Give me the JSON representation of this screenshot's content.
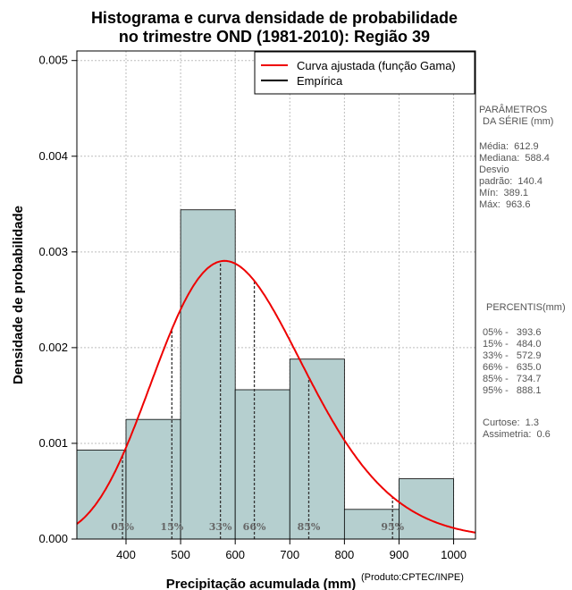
{
  "chart_data": {
    "type": "bar",
    "title_line1": "Histograma e curva densidade de probabilidade",
    "title_line2": "no trimestre OND (1981-2010): Região 39",
    "xlabel": "Precipitação acumulada (mm)",
    "ylabel": "Densidade de probabilidade",
    "xlim": [
      310,
      1040
    ],
    "ylim": [
      0,
      0.0051
    ],
    "x_ticks": [
      400,
      500,
      600,
      700,
      800,
      900,
      1000
    ],
    "x_tick_labels": [
      "400",
      "500",
      "600",
      "700",
      "800",
      "900",
      "1000"
    ],
    "y_ticks": [
      0,
      0.001,
      0.002,
      0.003,
      0.004,
      0.005
    ],
    "y_tick_labels": [
      "0.000",
      "0.001",
      "0.002",
      "0.003",
      "0.004",
      "0.005"
    ],
    "grid": true,
    "bins": [
      {
        "start": 310,
        "end": 400,
        "density": 0.00093
      },
      {
        "start": 400,
        "end": 500,
        "density": 0.00125
      },
      {
        "start": 500,
        "end": 600,
        "density": 0.00344
      },
      {
        "start": 600,
        "end": 700,
        "density": 0.00156
      },
      {
        "start": 700,
        "end": 800,
        "density": 0.00188
      },
      {
        "start": 800,
        "end": 900,
        "density": 0.00031
      },
      {
        "start": 900,
        "end": 1000,
        "density": 0.00063
      }
    ],
    "gamma_fit": {
      "shape": 19.06,
      "scale": 32.15
    },
    "legend": [
      {
        "label": "Curva ajustada (função Gama)",
        "color": "#ee0000"
      },
      {
        "label": "Empírica",
        "color": "#000000"
      }
    ],
    "percentile_markers": [
      {
        "label": "05%",
        "value": 393.6
      },
      {
        "label": "15%",
        "value": 484.0
      },
      {
        "label": "33%",
        "value": 572.9
      },
      {
        "label": "66%",
        "value": 635.0
      },
      {
        "label": "85%",
        "value": 734.7
      },
      {
        "label": "95%",
        "value": 888.1
      }
    ],
    "bar_color": "#b5cfcf",
    "curve_color": "#ee0000"
  },
  "side_panel": {
    "params_title_1": "PARÂMETROS",
    "params_title_2": "DA SÉRIE (mm)",
    "stats": [
      "Média:  612.9",
      "Mediana:  588.4",
      "Desvio",
      "padrão:  140.4",
      "Mín:  389.1",
      "Máx:  963.6"
    ],
    "percentis_title": "PERCENTIS(mm)",
    "percentis": [
      "05% -   393.6",
      "15% -   484.0",
      "33% -   572.9",
      "66% -   635.0",
      "85% -   734.7",
      "95% -   888.1"
    ],
    "shape": [
      "Curtose:  1.3",
      "Assimetria:  0.6"
    ]
  },
  "credit": "(Produto:CPTEC/INPE)"
}
